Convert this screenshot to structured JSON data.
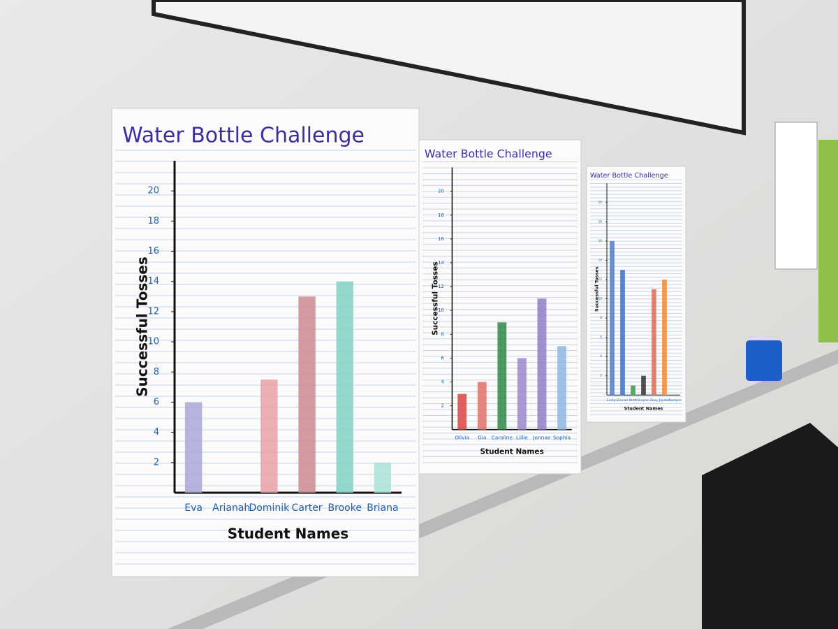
{
  "chart_data": [
    {
      "type": "bar",
      "title": "Water Bottle Challenge",
      "xlabel": "Student Names",
      "ylabel": "Successful Tosses",
      "categories": [
        "Eva",
        "Arianah",
        "Dominik",
        "Carter",
        "Brooke",
        "Briana"
      ],
      "values": [
        6,
        0,
        7.5,
        13,
        14,
        2
      ],
      "colors": [
        "#a9a6d8",
        "#b9b3c9",
        "#e8a0a8",
        "#c98a90",
        "#7fd1c4",
        "#a8e0d8"
      ],
      "ylim": [
        0,
        22
      ],
      "yticks": [
        2,
        4,
        6,
        8,
        10,
        12,
        14,
        16,
        18,
        20
      ],
      "grid": true
    },
    {
      "type": "bar",
      "title": "Water Bottle Challenge",
      "xlabel": "Student Names",
      "ylabel": "Successful Tosses",
      "categories": [
        "Olivia",
        "Gia",
        "Caroline",
        "Lillie",
        "Jennae",
        "Sophia"
      ],
      "values": [
        3,
        4,
        9,
        6,
        11,
        7
      ],
      "colors": [
        "#d8453f",
        "#e0706a",
        "#2e8a45",
        "#9a86cf",
        "#8f7cc4",
        "#8fb4e0"
      ],
      "ylim": [
        0,
        22
      ],
      "yticks": [
        2,
        4,
        6,
        8,
        10,
        12,
        14,
        16,
        18,
        20
      ],
      "grid": true
    },
    {
      "type": "bar",
      "title": "Water Bottle Challenge",
      "xlabel": "Student Names",
      "ylabel": "Successful Tosses",
      "categories": [
        "Evelyn",
        "Zaniah",
        "Brett",
        "Braylen",
        "Zoey",
        "Jayden",
        "Raelynn"
      ],
      "values": [
        16,
        13,
        1,
        2,
        11,
        12,
        0
      ],
      "colors": [
        "#4a7fd0",
        "#3f6fc8",
        "#3a9a50",
        "#333333",
        "#e06a50",
        "#f08a30",
        "#999999"
      ],
      "ylim": [
        0,
        22
      ],
      "yticks": [
        2,
        4,
        6,
        8,
        10,
        12,
        14,
        16,
        18,
        20
      ],
      "grid": true
    }
  ]
}
